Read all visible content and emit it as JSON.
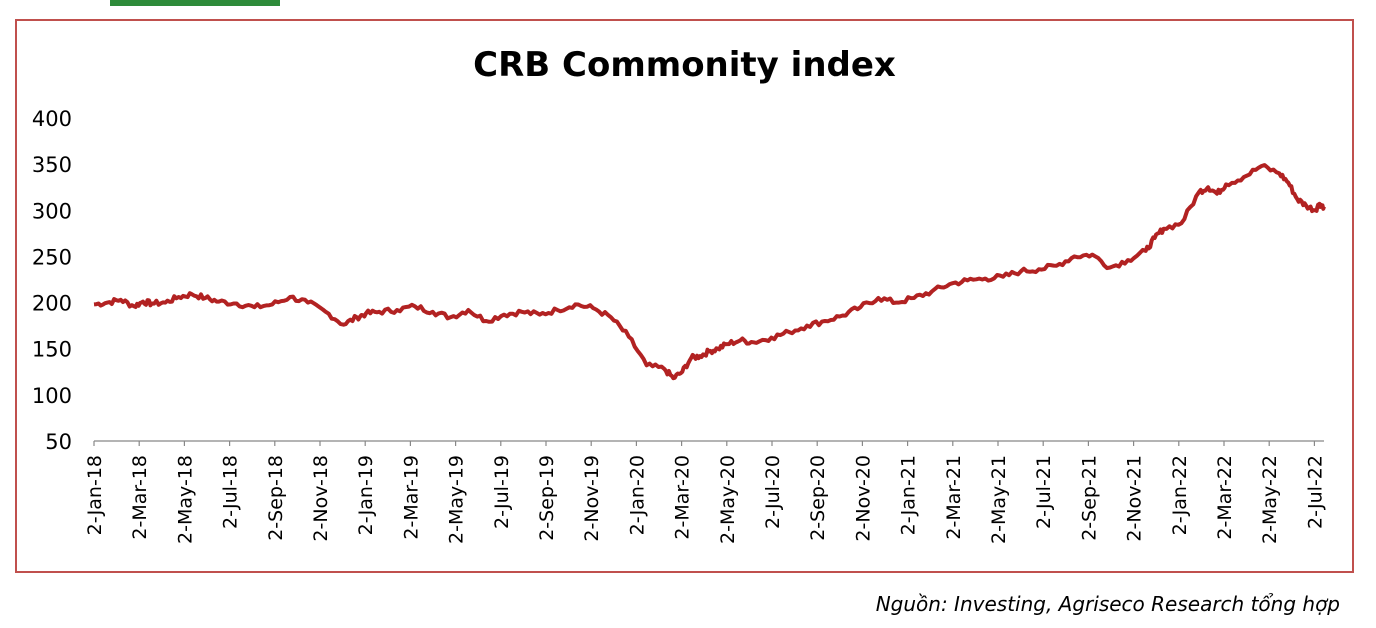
{
  "header_fragment_color": "#2e8b3a",
  "source": "Nguồn: Investing, Agriseco Research tổng hợp",
  "chart_data": {
    "type": "line",
    "title": "CRB Commonity index",
    "xlabel": "",
    "ylabel": "",
    "ylim": [
      50,
      400
    ],
    "yticks": [
      400,
      350,
      300,
      250,
      200,
      150,
      100,
      50
    ],
    "grid": false,
    "line_color": "#b22222",
    "x_tick_labels": [
      "2-Jan-18",
      "2-Mar-18",
      "2-May-18",
      "2-Jul-18",
      "2-Sep-18",
      "2-Nov-18",
      "2-Jan-19",
      "2-Mar-19",
      "2-May-19",
      "2-Jul-19",
      "2-Sep-19",
      "2-Nov-19",
      "2-Jan-20",
      "2-Mar-20",
      "2-May-20",
      "2-Jul-20",
      "2-Sep-20",
      "2-Nov-20",
      "2-Jan-21",
      "2-Mar-21",
      "2-May-21",
      "2-Jul-21",
      "2-Sep-21",
      "2-Nov-21",
      "2-Jan-22",
      "2-Mar-22",
      "2-May-22",
      "2-Jul-22"
    ],
    "x_range": [
      0,
      27.6
    ],
    "series": [
      {
        "name": "CRB Commodity index",
        "x": [
          0,
          0.3,
          0.6,
          0.9,
          1.1,
          1.3,
          1.6,
          1.9,
          2.2,
          2.5,
          2.8,
          3.2,
          3.6,
          4.0,
          4.4,
          4.8,
          5.2,
          5.6,
          5.9,
          6.1,
          6.4,
          6.8,
          7.2,
          7.6,
          8.0,
          8.4,
          8.8,
          9.2,
          9.6,
          10.0,
          10.4,
          10.8,
          11.2,
          11.6,
          12.0,
          12.4,
          12.8,
          13.0,
          13.2,
          13.4,
          13.6,
          13.8,
          14.0,
          14.2,
          14.5,
          14.8,
          15.2,
          15.6,
          16.0,
          16.4,
          16.8,
          17.2,
          17.6,
          18.0,
          18.4,
          18.8,
          19.2,
          19.6,
          20.0,
          20.4,
          20.8,
          21.2,
          21.6,
          22.0,
          22.4,
          22.8,
          23.2,
          23.6,
          23.8,
          24.0,
          24.4,
          24.8,
          25.0,
          25.2,
          25.4,
          25.8,
          26.2,
          26.6,
          26.8,
          27.0,
          27.2,
          27.4,
          27.5,
          27.6
        ],
        "values": [
          198,
          200,
          203,
          196,
          201,
          199,
          200,
          206,
          209,
          205,
          201,
          199,
          195,
          198,
          206,
          200,
          190,
          176,
          184,
          188,
          190,
          192,
          196,
          190,
          184,
          192,
          180,
          187,
          190,
          187,
          192,
          198,
          194,
          184,
          163,
          132,
          128,
          118,
          125,
          140,
          142,
          147,
          150,
          155,
          159,
          157,
          162,
          168,
          175,
          180,
          186,
          195,
          205,
          200,
          205,
          212,
          220,
          224,
          226,
          228,
          234,
          236,
          240,
          250,
          252,
          238,
          246,
          256,
          270,
          280,
          286,
          320,
          325,
          318,
          328,
          336,
          348,
          340,
          330,
          312,
          305,
          300,
          307,
          304
        ]
      }
    ]
  }
}
